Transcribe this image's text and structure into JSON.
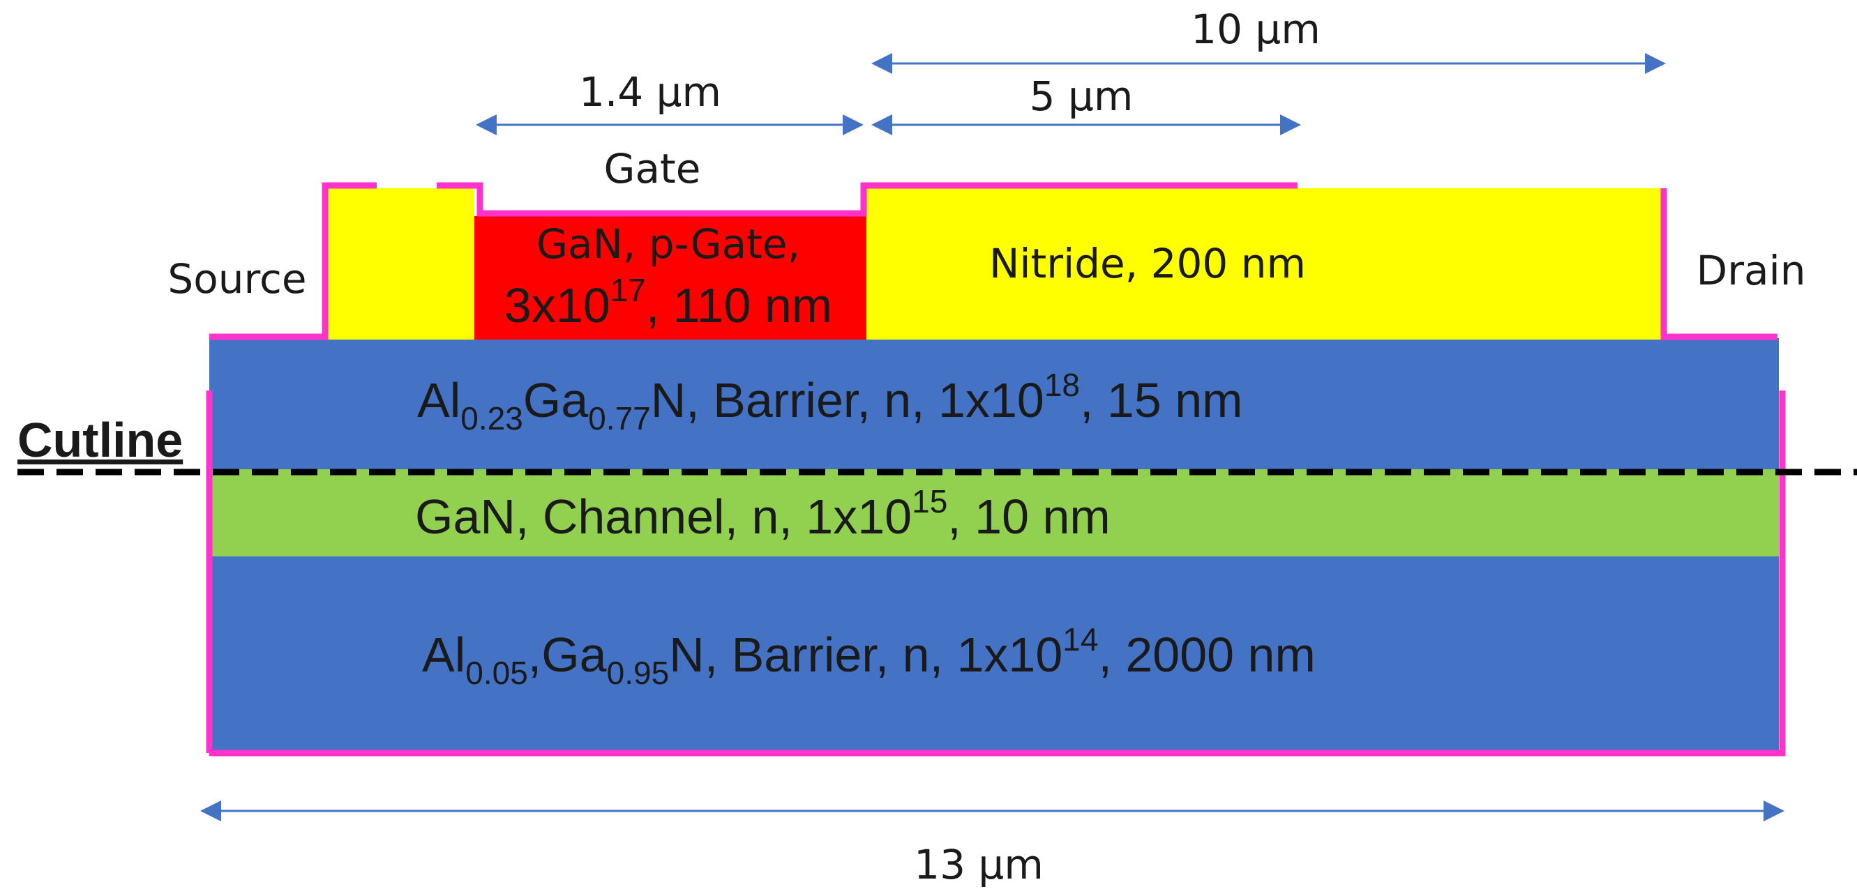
{
  "colors": {
    "barrier": "#4472C4",
    "channel": "#92D050",
    "nitride": "#FFFF00",
    "pgate": "#FF0000",
    "outline": "#FF33CC",
    "arrow": "#4472C4",
    "cutline": "#000000"
  },
  "dimensions": {
    "gate_length": "1.4 μm",
    "field_plate": "5 μm",
    "gate_drain": "10 μm",
    "total_width": "13 μm"
  },
  "labels": {
    "gate": "Gate",
    "source": "Source",
    "drain": "Drain",
    "cutline": "Cutline"
  },
  "layers": {
    "pgate": {
      "line1": "GaN, p-Gate,",
      "line2_pre": "3x10",
      "line2_sup": "17",
      "line2_post": ", 110 nm"
    },
    "nitride": {
      "text": "Nitride, 200 nm"
    },
    "barrier_top": {
      "el1": "Al",
      "sub1": "0.23",
      "el2": "Ga",
      "sub2": "0.77",
      "pre": "N, Barrier, n, 1x10",
      "sup": "18",
      "post": ", 15 nm"
    },
    "channel": {
      "pre": "GaN, Channel, n, 1x10",
      "sup": "15",
      "post": ", 10 nm"
    },
    "buffer": {
      "el1": "Al",
      "sub1": "0.05",
      "sep": ",",
      "el2": "Ga",
      "sub2": "0.95",
      "pre": "N, Barrier, n, 1x10",
      "sup": "14",
      "post": ", 2000 nm"
    }
  }
}
